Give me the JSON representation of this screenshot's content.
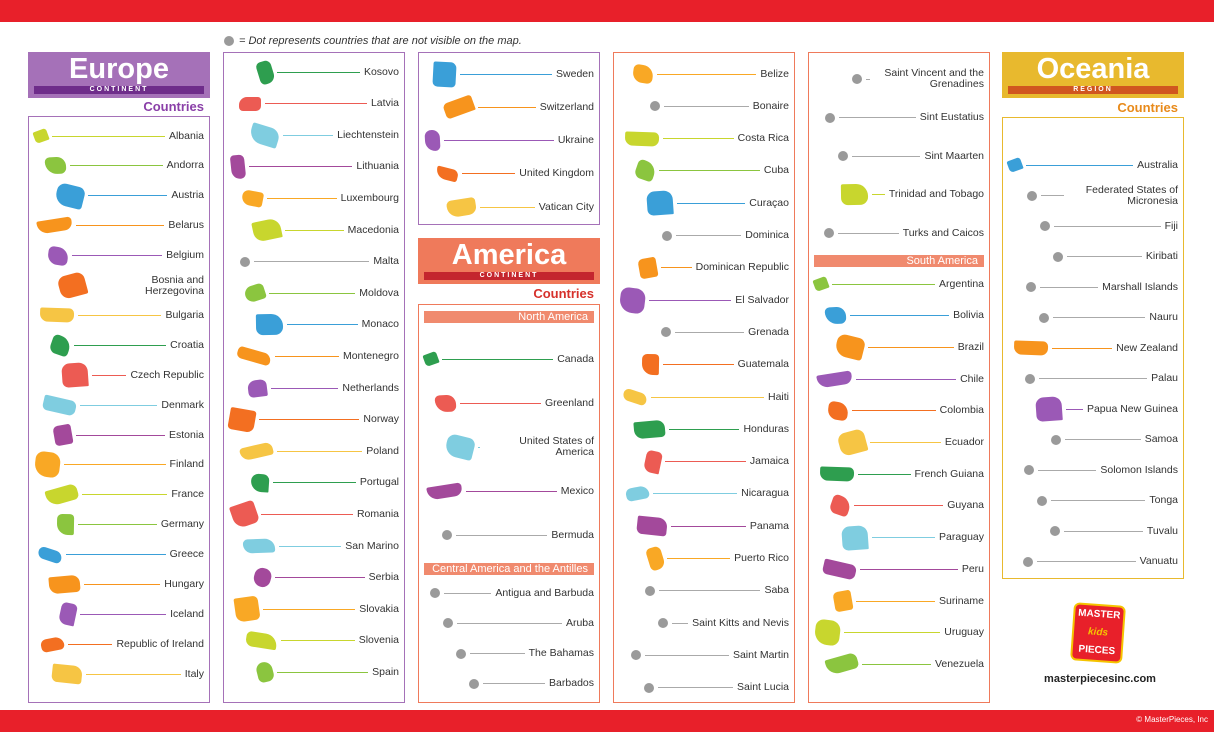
{
  "note": "= Dot represents countries that are not visible on the map.",
  "europe": {
    "title": "Europe",
    "subtitle": "CONTINENT",
    "heading": "Countries",
    "countries": [
      {
        "name": "Albania"
      },
      {
        "name": "Andorra"
      },
      {
        "name": "Austria"
      },
      {
        "name": "Belarus"
      },
      {
        "name": "Belgium"
      },
      {
        "name": "Bosnia and Herzegovina"
      },
      {
        "name": "Bulgaria"
      },
      {
        "name": "Croatia"
      },
      {
        "name": "Czech Republic"
      },
      {
        "name": "Denmark"
      },
      {
        "name": "Estonia"
      },
      {
        "name": "Finland"
      },
      {
        "name": "France"
      },
      {
        "name": "Germany"
      },
      {
        "name": "Greece"
      },
      {
        "name": "Hungary"
      },
      {
        "name": "Iceland"
      },
      {
        "name": "Republic of Ireland"
      },
      {
        "name": "Italy"
      },
      {
        "name": "Kosovo"
      },
      {
        "name": "Latvia"
      },
      {
        "name": "Liechtenstein"
      },
      {
        "name": "Lithuania"
      },
      {
        "name": "Luxembourg"
      },
      {
        "name": "Macedonia"
      },
      {
        "name": "Malta",
        "dot": true
      },
      {
        "name": "Moldova"
      },
      {
        "name": "Monaco"
      },
      {
        "name": "Montenegro"
      },
      {
        "name": "Netherlands"
      },
      {
        "name": "Norway"
      },
      {
        "name": "Poland"
      },
      {
        "name": "Portugal"
      },
      {
        "name": "Romania"
      },
      {
        "name": "San Marino"
      },
      {
        "name": "Serbia"
      },
      {
        "name": "Slovakia"
      },
      {
        "name": "Slovenia"
      },
      {
        "name": "Spain"
      },
      {
        "name": "Sweden"
      },
      {
        "name": "Switzerland"
      },
      {
        "name": "Ukraine"
      },
      {
        "name": "United Kingdom"
      },
      {
        "name": "Vatican City"
      }
    ]
  },
  "america": {
    "title": "America",
    "subtitle": "CONTINENT",
    "heading": "Countries",
    "north_america": {
      "title": "North America",
      "countries": [
        {
          "name": "Canada"
        },
        {
          "name": "Greenland"
        },
        {
          "name": "United States of America"
        },
        {
          "name": "Mexico"
        },
        {
          "name": "Bermuda",
          "dot": true
        }
      ]
    },
    "central_america": {
      "title": "Central America and the Antilles",
      "countries": [
        {
          "name": "Antigua and Barbuda",
          "dot": true
        },
        {
          "name": "Aruba",
          "dot": true
        },
        {
          "name": "The Bahamas",
          "dot": true
        },
        {
          "name": "Barbados",
          "dot": true
        },
        {
          "name": "Belize"
        },
        {
          "name": "Bonaire",
          "dot": true
        },
        {
          "name": "Costa Rica"
        },
        {
          "name": "Cuba"
        },
        {
          "name": "Curaçao"
        },
        {
          "name": "Dominica",
          "dot": true
        },
        {
          "name": "Dominican Republic"
        },
        {
          "name": "El Salvador"
        },
        {
          "name": "Grenada",
          "dot": true
        },
        {
          "name": "Guatemala"
        },
        {
          "name": "Haiti"
        },
        {
          "name": "Honduras"
        },
        {
          "name": "Jamaica"
        },
        {
          "name": "Nicaragua"
        },
        {
          "name": "Panama"
        },
        {
          "name": "Puerto Rico"
        },
        {
          "name": "Saba",
          "dot": true
        },
        {
          "name": "Saint Kitts and Nevis",
          "dot": true
        },
        {
          "name": "Saint Martin",
          "dot": true
        },
        {
          "name": "Saint Lucia",
          "dot": true
        },
        {
          "name": "Saint Vincent and the Grenadines",
          "dot": true
        },
        {
          "name": "Sint Eustatius",
          "dot": true
        },
        {
          "name": "Sint Maarten",
          "dot": true
        },
        {
          "name": "Trinidad and Tobago"
        },
        {
          "name": "Turks and Caicos",
          "dot": true
        }
      ]
    },
    "south_america": {
      "title": "South America",
      "countries": [
        {
          "name": "Argentina"
        },
        {
          "name": "Bolivia"
        },
        {
          "name": "Brazil"
        },
        {
          "name": "Chile"
        },
        {
          "name": "Colombia"
        },
        {
          "name": "Ecuador"
        },
        {
          "name": "French Guiana"
        },
        {
          "name": "Guyana"
        },
        {
          "name": "Paraguay"
        },
        {
          "name": "Peru"
        },
        {
          "name": "Suriname"
        },
        {
          "name": "Uruguay"
        },
        {
          "name": "Venezuela"
        }
      ]
    }
  },
  "oceania": {
    "title": "Oceania",
    "subtitle": "REGION",
    "heading": "Countries",
    "countries": [
      {
        "name": "Australia"
      },
      {
        "name": "Federated States of Micronesia",
        "dot": true
      },
      {
        "name": "Fiji",
        "dot": true
      },
      {
        "name": "Kiribati",
        "dot": true
      },
      {
        "name": "Marshall Islands",
        "dot": true
      },
      {
        "name": "Nauru",
        "dot": true
      },
      {
        "name": "New Zealand"
      },
      {
        "name": "Palau",
        "dot": true
      },
      {
        "name": "Papua New Guinea"
      },
      {
        "name": "Samoa",
        "dot": true
      },
      {
        "name": "Solomon Islands",
        "dot": true
      },
      {
        "name": "Tonga",
        "dot": true
      },
      {
        "name": "Tuvalu",
        "dot": true
      },
      {
        "name": "Vanuatu",
        "dot": true
      }
    ]
  },
  "logo": {
    "line1": "MASTER",
    "line2": "kids",
    "line3": "PIECES"
  },
  "website": "masterpiecesinc.com",
  "copyright": "© MasterPieces, Inc"
}
